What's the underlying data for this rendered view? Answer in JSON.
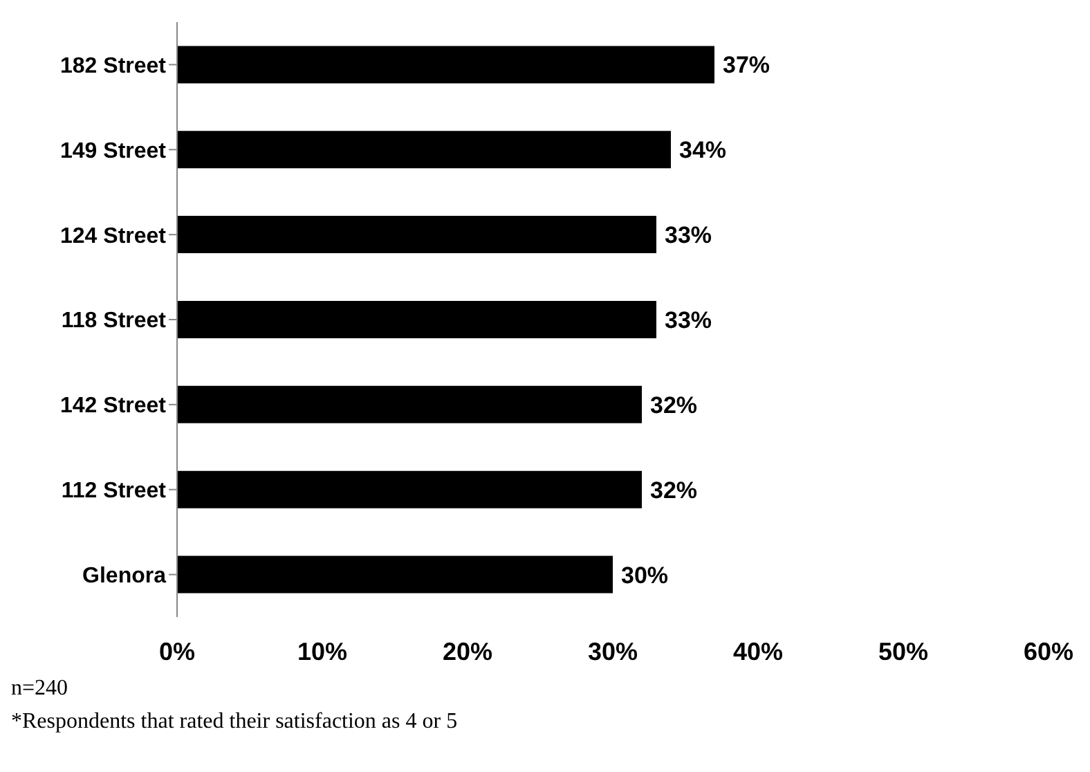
{
  "chart_data": {
    "type": "bar",
    "orientation": "horizontal",
    "categories": [
      "182 Street",
      "149 Street",
      "124 Street",
      "118 Street",
      "142 Street",
      "112 Street",
      "Glenora"
    ],
    "values": [
      37,
      34,
      33,
      33,
      32,
      32,
      30
    ],
    "value_labels": [
      "37%",
      "34%",
      "33%",
      "33%",
      "32%",
      "32%",
      "30%"
    ],
    "color": "#000000",
    "xlim": [
      0,
      60
    ],
    "xticks": [
      {
        "value": 0,
        "label": "0%"
      },
      {
        "value": 10,
        "label": "10%"
      },
      {
        "value": 20,
        "label": "20%"
      },
      {
        "value": 30,
        "label": "30%"
      },
      {
        "value": 40,
        "label": "40%"
      },
      {
        "value": 50,
        "label": "50%"
      },
      {
        "value": 60,
        "label": "60%"
      }
    ],
    "grid": false,
    "annotations": [
      "n=240",
      "*Respondents that rated their satisfaction as 4 or 5"
    ]
  }
}
